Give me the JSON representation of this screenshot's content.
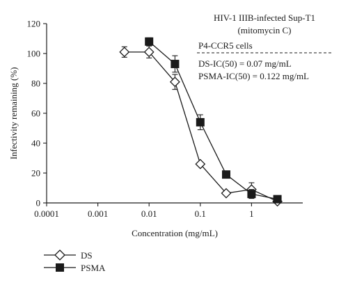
{
  "chart_data": {
    "type": "line",
    "xlabel": "Concentration (mg/mL)",
    "ylabel": "Infectivity remaining (%)",
    "xscale": "log",
    "xlim": [
      0.0001,
      10
    ],
    "ylim": [
      0,
      120
    ],
    "xticks": [
      0.0001,
      0.001,
      0.01,
      0.1,
      1
    ],
    "xtick_labels": [
      "0.0001",
      "0.001",
      "0.01",
      "0.1",
      "1"
    ],
    "yticks": [
      0,
      20,
      40,
      60,
      80,
      100,
      120
    ],
    "ytick_labels": [
      "0",
      "20",
      "40",
      "60",
      "80",
      "100",
      "120"
    ],
    "grid": false,
    "legend_position": "bottom-left",
    "annotations": [
      "HIV-1 IIIB-infected Sup-T1",
      "(mitomycin C)",
      "P4-CCR5 cells",
      "DS-IC(50) = 0.07 mg/mL",
      "PSMA-IC(50) = 0.122 mg/mL"
    ],
    "series": [
      {
        "name": "DS",
        "marker": "open-diamond",
        "x": [
          0.0033,
          0.01,
          0.032,
          0.1,
          0.32,
          1,
          3.2
        ],
        "y": [
          101,
          101,
          81,
          26,
          6.5,
          9,
          1
        ],
        "err": [
          3.5,
          4,
          5,
          0,
          0,
          4.5,
          0
        ]
      },
      {
        "name": "PSMA",
        "marker": "filled-square",
        "x": [
          0.01,
          0.032,
          0.1,
          0.32,
          1,
          3.2
        ],
        "y": [
          108,
          93,
          54,
          19,
          6,
          2.5
        ],
        "err": [
          2.5,
          5.5,
          5,
          0,
          3,
          0
        ]
      }
    ]
  }
}
